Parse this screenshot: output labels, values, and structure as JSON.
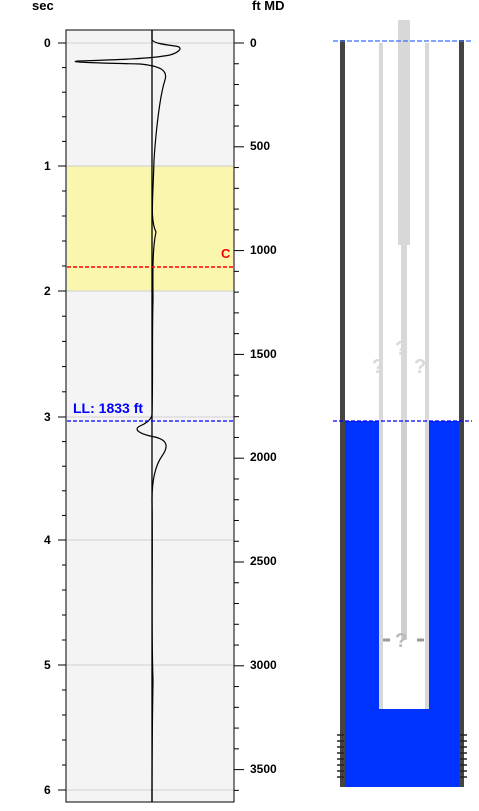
{
  "left_axis": {
    "unit_label": "sec",
    "ticks": [
      "0",
      "1",
      "2",
      "3",
      "4",
      "5",
      "6"
    ]
  },
  "right_axis": {
    "unit_label": "ft MD",
    "ticks": [
      "0",
      "500",
      "1000",
      "1500",
      "2000",
      "2500",
      "3000",
      "3500"
    ]
  },
  "markers": {
    "c_label": "C",
    "liquid_level_label": "LL: 1833 ft",
    "liquid_level_ft": 1833
  },
  "wellbore": {
    "unknown_glyph": "?"
  },
  "colors": {
    "highlight_band": "#faf6ae",
    "track_background": "#f4f4f4",
    "c_marker": "#ff0000",
    "liquid_level": "#0000ff",
    "fluid": "#0033ff",
    "tubing": "#d8d8d8"
  },
  "trace": {
    "time_range_sec": [
      0,
      6
    ],
    "depth_range_ft": [
      0,
      3600
    ],
    "c_time_sec": 1.8,
    "band_sec": [
      1.0,
      2.0
    ]
  }
}
